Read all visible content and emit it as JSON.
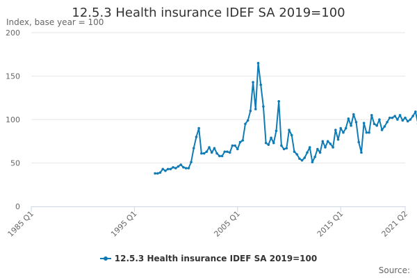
{
  "title": "12.5.3 Health insurance IDEF SA 2019=100",
  "subtitle": "Index, base year = 100",
  "source_label": "Source:",
  "colors": {
    "series": "#0f7bb5",
    "grid": "#e6e6e6",
    "axis": "#ccd6eb",
    "text": "#666666"
  },
  "chart_data": {
    "type": "line",
    "title": "12.5.3 Health insurance IDEF SA 2019=100",
    "subtitle": "Index, base year = 100",
    "xlabel": "",
    "ylabel": "",
    "xlim": [
      1985.0,
      2021.25
    ],
    "ylim": [
      0,
      200
    ],
    "y_ticks": [
      0,
      50,
      100,
      150,
      200
    ],
    "x_ticks": [
      {
        "value": 1985.0,
        "label": "1985 Q1"
      },
      {
        "value": 1995.0,
        "label": "1995 Q1"
      },
      {
        "value": 2005.0,
        "label": "2005 Q1"
      },
      {
        "value": 2015.0,
        "label": "2015 Q1"
      },
      {
        "value": 2021.25,
        "label": "2021 Q2"
      }
    ],
    "grid": true,
    "legend": "bottom-center",
    "series": [
      {
        "name": "12.5.3 Health insurance IDEF SA 2019=100",
        "start": 1997.0,
        "step": 0.25,
        "values": [
          38,
          38,
          39,
          43,
          41,
          43,
          43,
          45,
          44,
          46,
          48,
          45,
          44,
          44,
          51,
          67,
          80,
          90,
          61,
          61,
          63,
          68,
          62,
          67,
          61,
          58,
          58,
          63,
          63,
          62,
          70,
          70,
          66,
          74,
          76,
          95,
          99,
          110,
          143,
          112,
          165,
          140,
          115,
          73,
          71,
          79,
          73,
          87,
          121,
          70,
          66,
          67,
          88,
          82,
          63,
          60,
          55,
          53,
          56,
          62,
          68,
          51,
          57,
          66,
          62,
          75,
          68,
          75,
          72,
          68,
          88,
          77,
          90,
          85,
          90,
          101,
          93,
          106,
          97,
          74,
          62,
          96,
          85,
          85,
          105,
          95,
          93,
          100,
          88,
          92,
          97,
          102,
          102,
          104,
          100,
          105,
          99,
          102,
          98,
          100,
          104,
          109,
          95,
          103,
          109
        ]
      }
    ]
  }
}
